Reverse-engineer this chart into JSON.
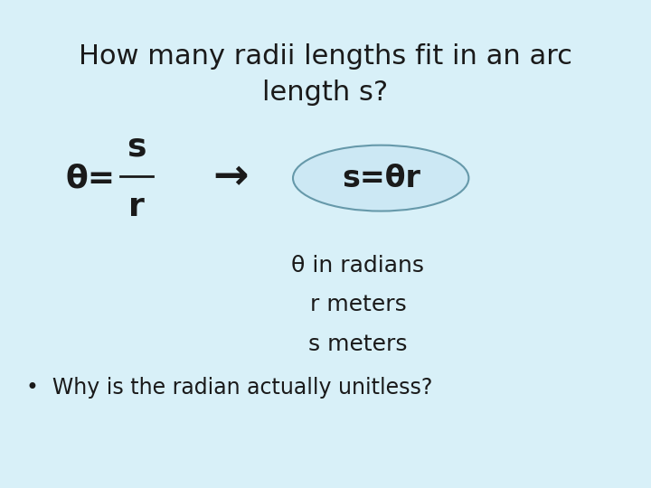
{
  "background_color": "#d8f0f8",
  "title_line1": "How many radii lengths fit in an arc",
  "title_line2": "length s?",
  "title_fontsize": 22,
  "title_color": "#1a1a1a",
  "theta_eq_text": "θ=",
  "s_text": "s",
  "r_text": "r",
  "arrow_text": "→",
  "ellipse_text": "s=θr",
  "ellipse_facecolor": "#cce8f4",
  "ellipse_edgecolor": "#6699aa",
  "ellipse_linewidth": 1.5,
  "radians_text": "θ in radians",
  "r_meters_text": "r meters",
  "s_meters_text": "s meters",
  "bullet_text": "•  Why is the radian actually unitless?",
  "main_fontsize": 18,
  "small_fontsize": 17,
  "font_family": "sans-serif"
}
